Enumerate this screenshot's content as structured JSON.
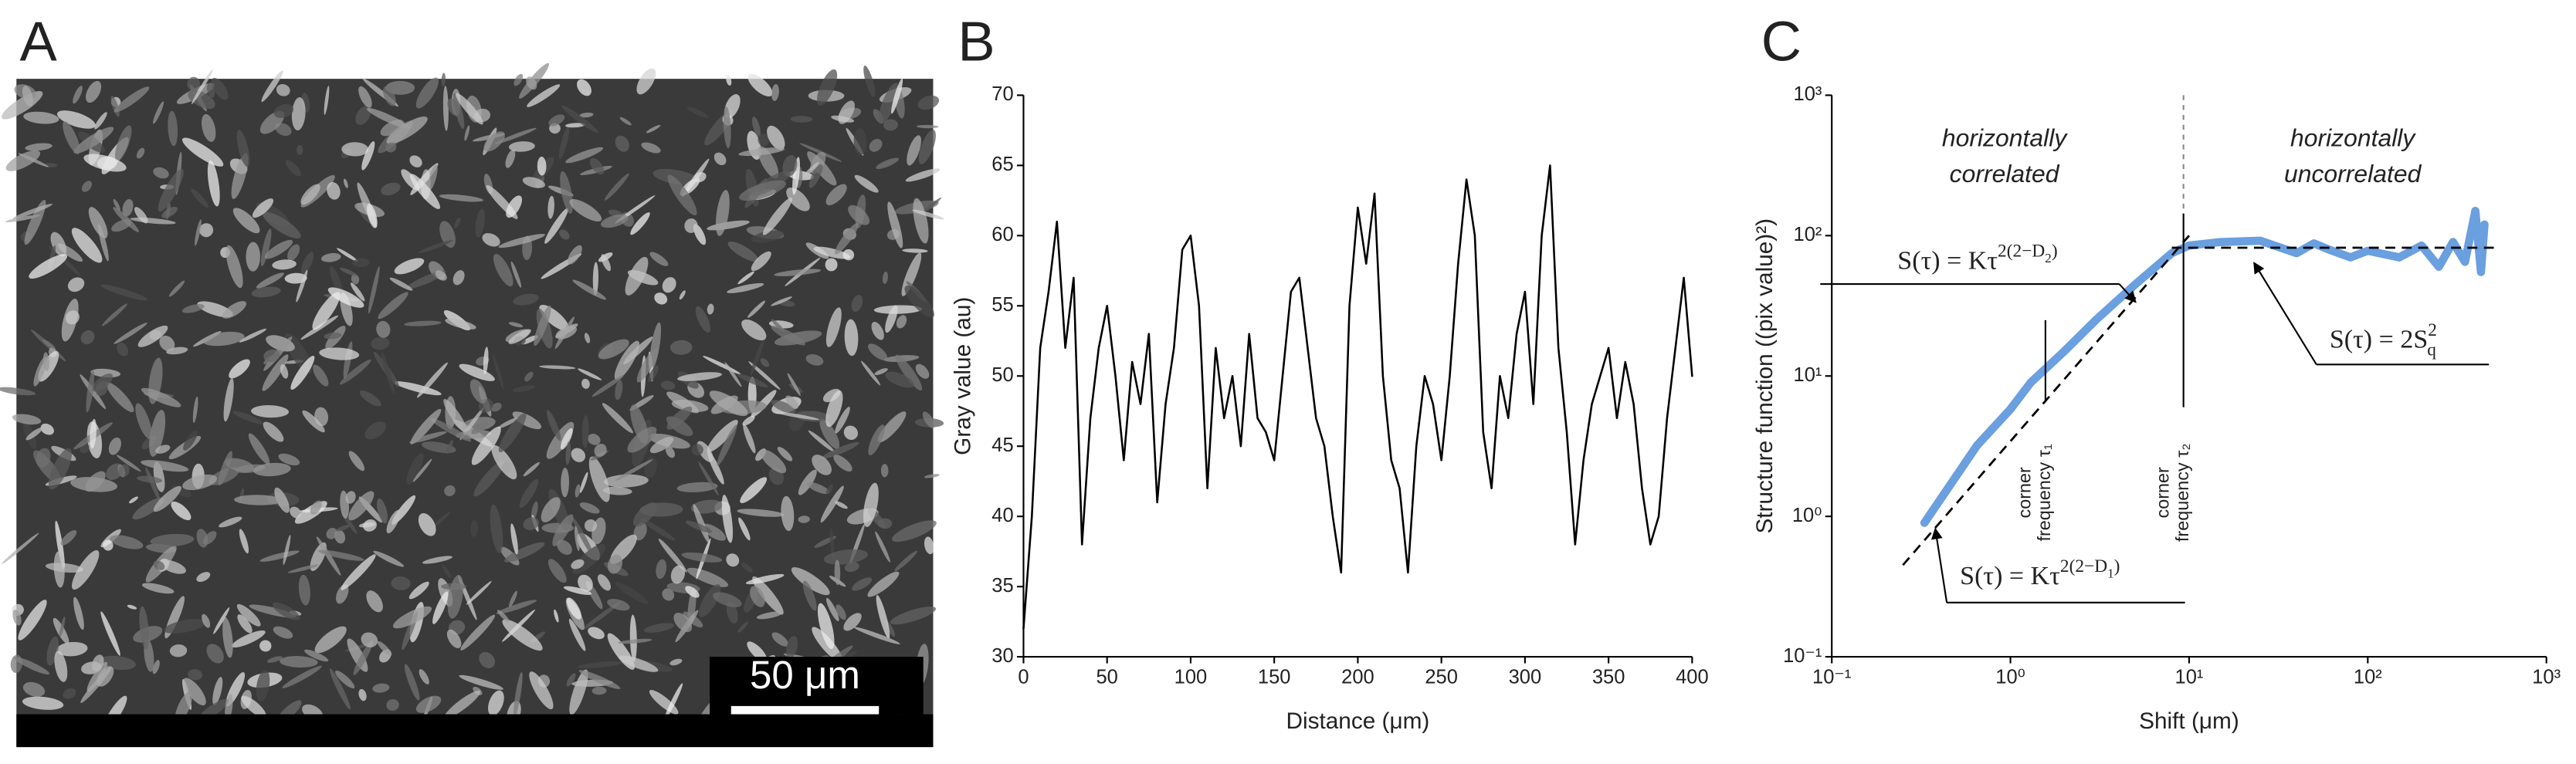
{
  "panel_labels": [
    "A",
    "B",
    "C"
  ],
  "scale_bar": "50 μm",
  "chart_data": [
    {
      "type": "line",
      "xlabel": "Distance (μm)",
      "ylabel": "Gray value (au)",
      "xlim": [
        0,
        400
      ],
      "xticks": [
        0,
        50,
        100,
        150,
        200,
        250,
        300,
        350,
        400
      ],
      "ylim": [
        30,
        70
      ],
      "yticks": [
        30,
        35,
        40,
        45,
        50,
        55,
        60,
        65,
        70
      ],
      "series": [
        {
          "color": "#000000",
          "x": [
            0,
            5,
            10,
            15,
            20,
            25,
            30,
            35,
            40,
            45,
            50,
            55,
            60,
            65,
            70,
            75,
            80,
            85,
            90,
            95,
            100,
            105,
            110,
            115,
            120,
            125,
            130,
            135,
            140,
            145,
            150,
            155,
            160,
            165,
            170,
            175,
            180,
            185,
            190,
            195,
            200,
            205,
            210,
            215,
            220,
            225,
            230,
            235,
            240,
            245,
            250,
            255,
            260,
            265,
            270,
            275,
            280,
            285,
            290,
            295,
            300,
            305,
            310,
            315,
            320,
            325,
            330,
            335,
            340,
            345,
            350,
            355,
            360,
            365,
            370,
            375,
            380,
            385,
            390,
            395,
            400
          ],
          "values": [
            32,
            40,
            52,
            56,
            61,
            52,
            57,
            38,
            47,
            52,
            55,
            50,
            44,
            51,
            48,
            53,
            41,
            48,
            52,
            59,
            60,
            55,
            42,
            52,
            47,
            50,
            45,
            53,
            47,
            46,
            44,
            50,
            56,
            57,
            52,
            47,
            45,
            40,
            36,
            55,
            62,
            58,
            63,
            50,
            44,
            42,
            36,
            45,
            50,
            48,
            44,
            50,
            58,
            64,
            60,
            46,
            42,
            50,
            47,
            53,
            56,
            48,
            60,
            65,
            52,
            46,
            38,
            44,
            48,
            50,
            52,
            47,
            51,
            48,
            42,
            38,
            40,
            47,
            52,
            57,
            50
          ]
        }
      ]
    },
    {
      "type": "line",
      "log_x": true,
      "log_y": true,
      "xlabel": "Shift (μm)",
      "ylabel": "Structure function ((pix value)²)",
      "xlim": [
        0.1,
        1000
      ],
      "xticks": [
        {
          "value": 0.1,
          "label": "10⁻¹"
        },
        {
          "value": 1,
          "label": "10⁰"
        },
        {
          "value": 10,
          "label": "10¹"
        },
        {
          "value": 100,
          "label": "10²"
        },
        {
          "value": 1000,
          "label": "10³"
        }
      ],
      "ylim": [
        0.1,
        1000
      ],
      "yticks": [
        {
          "value": 0.1,
          "label": "10⁻¹"
        },
        {
          "value": 1,
          "label": "10⁰"
        },
        {
          "value": 10,
          "label": "10¹"
        },
        {
          "value": 100,
          "label": "10²"
        },
        {
          "value": 1000,
          "label": "10³"
        }
      ],
      "series": [
        {
          "color": "#6a9fe0",
          "x": [
            0.33,
            0.65,
            1.0,
            1.3,
            2,
            3,
            5,
            8,
            10,
            15,
            25,
            40,
            50,
            60,
            80,
            100,
            150,
            200,
            250,
            300,
            350,
            400,
            430,
            450
          ],
          "values": [
            0.9,
            3.2,
            5.8,
            9,
            15,
            25,
            45,
            75,
            85,
            90,
            92,
            75,
            88,
            80,
            70,
            78,
            70,
            85,
            60,
            90,
            65,
            150,
            55,
            120
          ]
        }
      ],
      "power_law_line": {
        "x": [
          0.25,
          10
        ],
        "y": [
          0.45,
          100
        ]
      },
      "plateau_line": {
        "x": [
          8,
          550
        ],
        "y": 82
      },
      "tau1": 1.57,
      "tau2": 9.3,
      "annotations": {
        "left": [
          "horizontally",
          "correlated"
        ],
        "right": [
          "horizontally",
          "uncorrelated"
        ],
        "corner1": [
          "corner",
          "frequency τ₁"
        ],
        "corner2": [
          "corner",
          "frequency τ₂"
        ]
      },
      "equations": [
        {
          "lhs": "S(τ) = Kτ",
          "sup": "2(2−D",
          "sub": "2",
          "end": ")"
        },
        {
          "lhs": "S(τ) = 2S",
          "sup": "2",
          "sub": "q"
        },
        {
          "lhs": "S(τ) = Kτ",
          "sup": "2(2−D",
          "sub": "1",
          "end": ")"
        }
      ]
    }
  ]
}
